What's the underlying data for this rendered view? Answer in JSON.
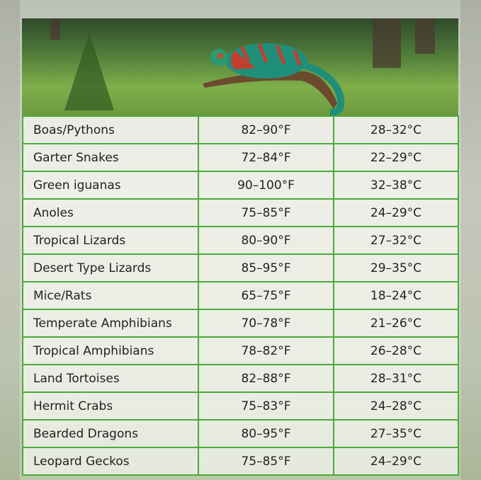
{
  "colors": {
    "border": "#4caa3a",
    "text": "#222222"
  },
  "banner": {
    "image": "chameleon-on-branch-forest"
  },
  "table": {
    "rows": [
      {
        "animal": "Boas/Pythons",
        "fahrenheit": "82–90°F",
        "celsius": "28–32°C"
      },
      {
        "animal": "Garter Snakes",
        "fahrenheit": "72–84°F",
        "celsius": "22–29°C"
      },
      {
        "animal": "Green iguanas",
        "fahrenheit": "90–100°F",
        "celsius": "32–38°C"
      },
      {
        "animal": "Anoles",
        "fahrenheit": "75–85°F",
        "celsius": "24–29°C"
      },
      {
        "animal": "Tropical Lizards",
        "fahrenheit": "80–90°F",
        "celsius": "27–32°C"
      },
      {
        "animal": "Desert Type Lizards",
        "fahrenheit": "85–95°F",
        "celsius": "29–35°C"
      },
      {
        "animal": "Mice/Rats",
        "fahrenheit": "65–75°F",
        "celsius": "18–24°C"
      },
      {
        "animal": "Temperate Amphibians",
        "fahrenheit": "70–78°F",
        "celsius": "21–26°C"
      },
      {
        "animal": "Tropical Amphibians",
        "fahrenheit": "78–82°F",
        "celsius": "26–28°C"
      },
      {
        "animal": "Land Tortoises",
        "fahrenheit": "82–88°F",
        "celsius": "28–31°C"
      },
      {
        "animal": "Hermit Crabs",
        "fahrenheit": "75–83°F",
        "celsius": "24–28°C"
      },
      {
        "animal": "Bearded Dragons",
        "fahrenheit": "80–95°F",
        "celsius": "27–35°C"
      },
      {
        "animal": "Leopard Geckos",
        "fahrenheit": "75–85°F",
        "celsius": "24–29°C"
      }
    ]
  }
}
